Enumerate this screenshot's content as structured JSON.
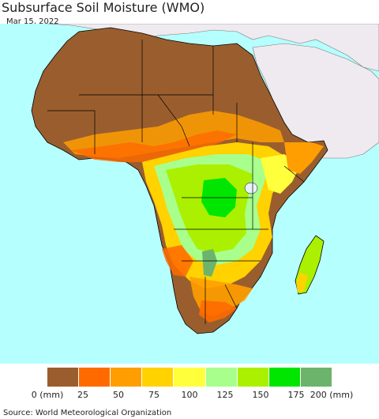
{
  "title": "Subsurface Soil Moisture (WMO)",
  "date": "Mar 15, 2022",
  "source": "Source: World Meteorological Organization",
  "legend": {
    "ticks": [
      "0 (mm)",
      "25",
      "50",
      "75",
      "100",
      "125",
      "150",
      "175",
      "200 (mm)"
    ],
    "colors": [
      "#9a5e2e",
      "#ff6a00",
      "#ff9e00",
      "#ffd200",
      "#ffff3c",
      "#a8ff8c",
      "#aaf000",
      "#00e600",
      "#6cb46c"
    ]
  },
  "colors": {
    "ocean": "#b6ffff",
    "non_africa_land": "#efeaf0",
    "border": "#000000"
  }
}
